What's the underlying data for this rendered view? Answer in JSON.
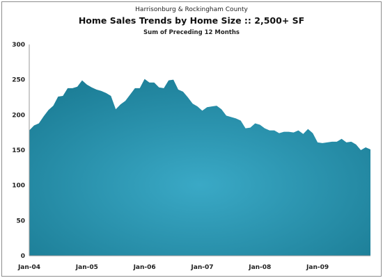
{
  "chart_data": {
    "type": "area",
    "supertitle": "Harrisonburg & Rockingham County",
    "title": "Home Sales Trends by Home Size  ::  2,500+ SF",
    "subtitle": "Sum of Preceding 12 Months",
    "xlabel": "",
    "ylabel": "",
    "ylim": [
      0,
      300
    ],
    "yticks": [
      0,
      50,
      100,
      150,
      200,
      250,
      300
    ],
    "xtick_labels": [
      "Jan-04",
      "Jan-05",
      "Jan-06",
      "Jan-07",
      "Jan-08",
      "Jan-09"
    ],
    "x_start": "Jan-04",
    "x_end": "Dec-09",
    "grid": false,
    "color": "#2a93ad",
    "values": [
      178,
      185,
      188,
      198,
      207,
      213,
      226,
      227,
      238,
      238,
      240,
      249,
      243,
      239,
      236,
      234,
      231,
      227,
      208,
      215,
      220,
      229,
      238,
      238,
      251,
      246,
      246,
      239,
      238,
      249,
      250,
      236,
      233,
      225,
      216,
      212,
      206,
      211,
      212,
      213,
      208,
      199,
      197,
      195,
      192,
      181,
      182,
      188,
      186,
      181,
      178,
      178,
      174,
      176,
      176,
      175,
      178,
      173,
      180,
      174,
      161,
      160,
      161,
      162,
      162,
      166,
      161,
      162,
      158,
      150,
      154,
      151
    ]
  }
}
